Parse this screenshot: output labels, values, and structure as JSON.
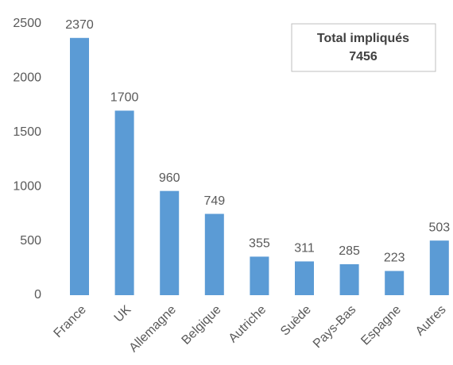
{
  "chart_data": {
    "type": "bar",
    "categories": [
      "France",
      "UK",
      "Allemagne",
      "Belgique",
      "Autriche",
      "Suède",
      "Pays-Bas",
      "Espagne",
      "Autres"
    ],
    "values": [
      2370,
      1700,
      960,
      749,
      355,
      311,
      285,
      223,
      503
    ],
    "color": "#5b9bd5",
    "ylim": [
      0,
      2500
    ],
    "yticks": [
      0,
      500,
      1000,
      1500,
      2000,
      2500
    ],
    "grid": false,
    "annotation": {
      "label": "Total impliqués",
      "value": 7456
    }
  }
}
